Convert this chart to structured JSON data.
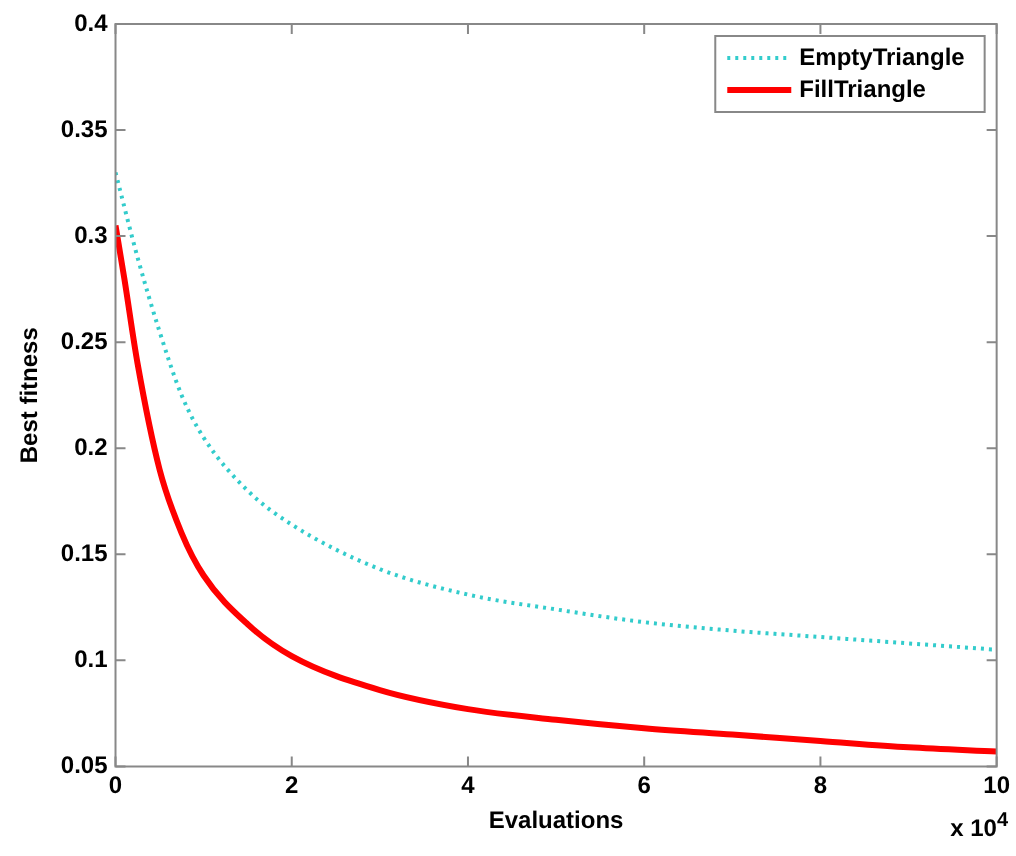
{
  "chart_data": {
    "type": "line",
    "xlabel": "Evaluations",
    "ylabel": "Best fitness",
    "annotations": [
      "x 10$^{4}$"
    ],
    "xlim": [
      0,
      10
    ],
    "xticks": [
      0,
      2,
      4,
      6,
      8,
      10
    ],
    "ylim": [
      0.05,
      0.4
    ],
    "yticks": [
      0.05,
      0.1,
      0.15,
      0.2,
      0.25,
      0.3,
      0.35,
      0.4
    ],
    "grid": false,
    "legend": "top right",
    "marker": "none",
    "series": [
      {
        "name": "EmptyTriangle",
        "color": "#33cccc",
        "line_style": "dotted",
        "x": [
          0,
          0.25,
          0.5,
          0.75,
          1,
          1.5,
          2,
          3,
          4,
          5,
          6,
          7,
          8,
          9,
          10
        ],
        "values": [
          0.33,
          0.29,
          0.255,
          0.225,
          0.205,
          0.18,
          0.164,
          0.143,
          0.131,
          0.124,
          0.118,
          0.114,
          0.111,
          0.108,
          0.105
        ]
      },
      {
        "name": "FillTriangle",
        "color": "#ff0000",
        "line_style": "solid",
        "x": [
          0,
          0.1,
          0.25,
          0.5,
          0.75,
          1,
          1.5,
          2,
          3,
          4,
          5,
          6,
          7,
          8,
          9,
          10
        ],
        "values": [
          0.305,
          0.28,
          0.24,
          0.19,
          0.16,
          0.14,
          0.117,
          0.102,
          0.086,
          0.077,
          0.072,
          0.068,
          0.065,
          0.062,
          0.059,
          0.057
        ]
      }
    ]
  }
}
